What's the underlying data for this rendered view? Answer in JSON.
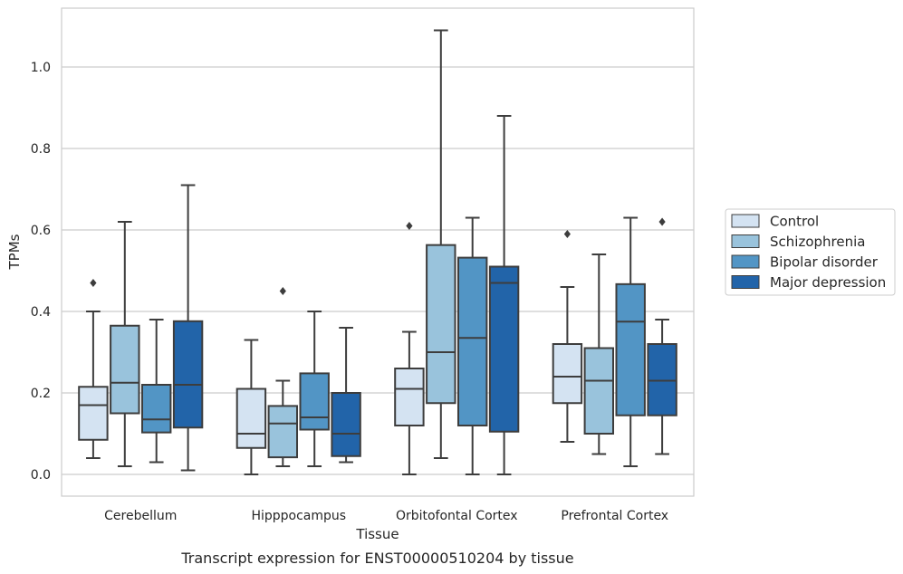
{
  "chart_data": {
    "type": "box",
    "xlabel": "Tissue",
    "ylabel": "TPMs",
    "caption": "Transcript expression for ENST00000510204 by tissue",
    "ylim": [
      -0.05,
      1.15
    ],
    "yticks": [
      "0.0",
      "0.2",
      "0.4",
      "0.6",
      "0.8",
      "1.0"
    ],
    "grid": true,
    "legend_position": "right",
    "categories": [
      "Cerebellum",
      "Hipppocampus",
      "Orbitofontal Cortex",
      "Prefrontal Cortex"
    ],
    "series": [
      {
        "name": "Control",
        "color": "#d4e3f2",
        "boxes": [
          {
            "whislo": 0.04,
            "q1": 0.085,
            "med": 0.17,
            "q3": 0.215,
            "whishi": 0.4,
            "fliers": [
              0.47
            ]
          },
          {
            "whislo": 0.0,
            "q1": 0.065,
            "med": 0.1,
            "q3": 0.21,
            "whishi": 0.33,
            "fliers": []
          },
          {
            "whislo": 0.0,
            "q1": 0.12,
            "med": 0.21,
            "q3": 0.26,
            "whishi": 0.35,
            "fliers": [
              0.61
            ]
          },
          {
            "whislo": 0.08,
            "q1": 0.175,
            "med": 0.24,
            "q3": 0.32,
            "whishi": 0.46,
            "fliers": [
              0.59
            ]
          }
        ]
      },
      {
        "name": "Schizophrenia",
        "color": "#99c3dc",
        "boxes": [
          {
            "whislo": 0.02,
            "q1": 0.15,
            "med": 0.225,
            "q3": 0.365,
            "whishi": 0.62,
            "fliers": []
          },
          {
            "whislo": 0.02,
            "q1": 0.042,
            "med": 0.125,
            "q3": 0.168,
            "whishi": 0.23,
            "fliers": [
              0.45
            ]
          },
          {
            "whislo": 0.04,
            "q1": 0.175,
            "med": 0.3,
            "q3": 0.563,
            "whishi": 1.09,
            "fliers": []
          },
          {
            "whislo": 0.05,
            "q1": 0.1,
            "med": 0.23,
            "q3": 0.31,
            "whishi": 0.54,
            "fliers": []
          }
        ]
      },
      {
        "name": "Bipolar disorder",
        "color": "#5295c5",
        "boxes": [
          {
            "whislo": 0.03,
            "q1": 0.103,
            "med": 0.135,
            "q3": 0.22,
            "whishi": 0.38,
            "fliers": []
          },
          {
            "whislo": 0.02,
            "q1": 0.11,
            "med": 0.14,
            "q3": 0.248,
            "whishi": 0.4,
            "fliers": []
          },
          {
            "whislo": 0.0,
            "q1": 0.12,
            "med": 0.335,
            "q3": 0.532,
            "whishi": 0.63,
            "fliers": []
          },
          {
            "whislo": 0.02,
            "q1": 0.145,
            "med": 0.375,
            "q3": 0.467,
            "whishi": 0.63,
            "fliers": []
          }
        ]
      },
      {
        "name": "Major depression",
        "color": "#2264a9",
        "boxes": [
          {
            "whislo": 0.01,
            "q1": 0.115,
            "med": 0.22,
            "q3": 0.376,
            "whishi": 0.71,
            "fliers": []
          },
          {
            "whislo": 0.03,
            "q1": 0.045,
            "med": 0.1,
            "q3": 0.2,
            "whishi": 0.36,
            "fliers": []
          },
          {
            "whislo": 0.0,
            "q1": 0.105,
            "med": 0.47,
            "q3": 0.51,
            "whishi": 0.88,
            "fliers": []
          },
          {
            "whislo": 0.05,
            "q1": 0.145,
            "med": 0.23,
            "q3": 0.32,
            "whishi": 0.38,
            "fliers": [
              0.62
            ]
          }
        ]
      }
    ]
  }
}
